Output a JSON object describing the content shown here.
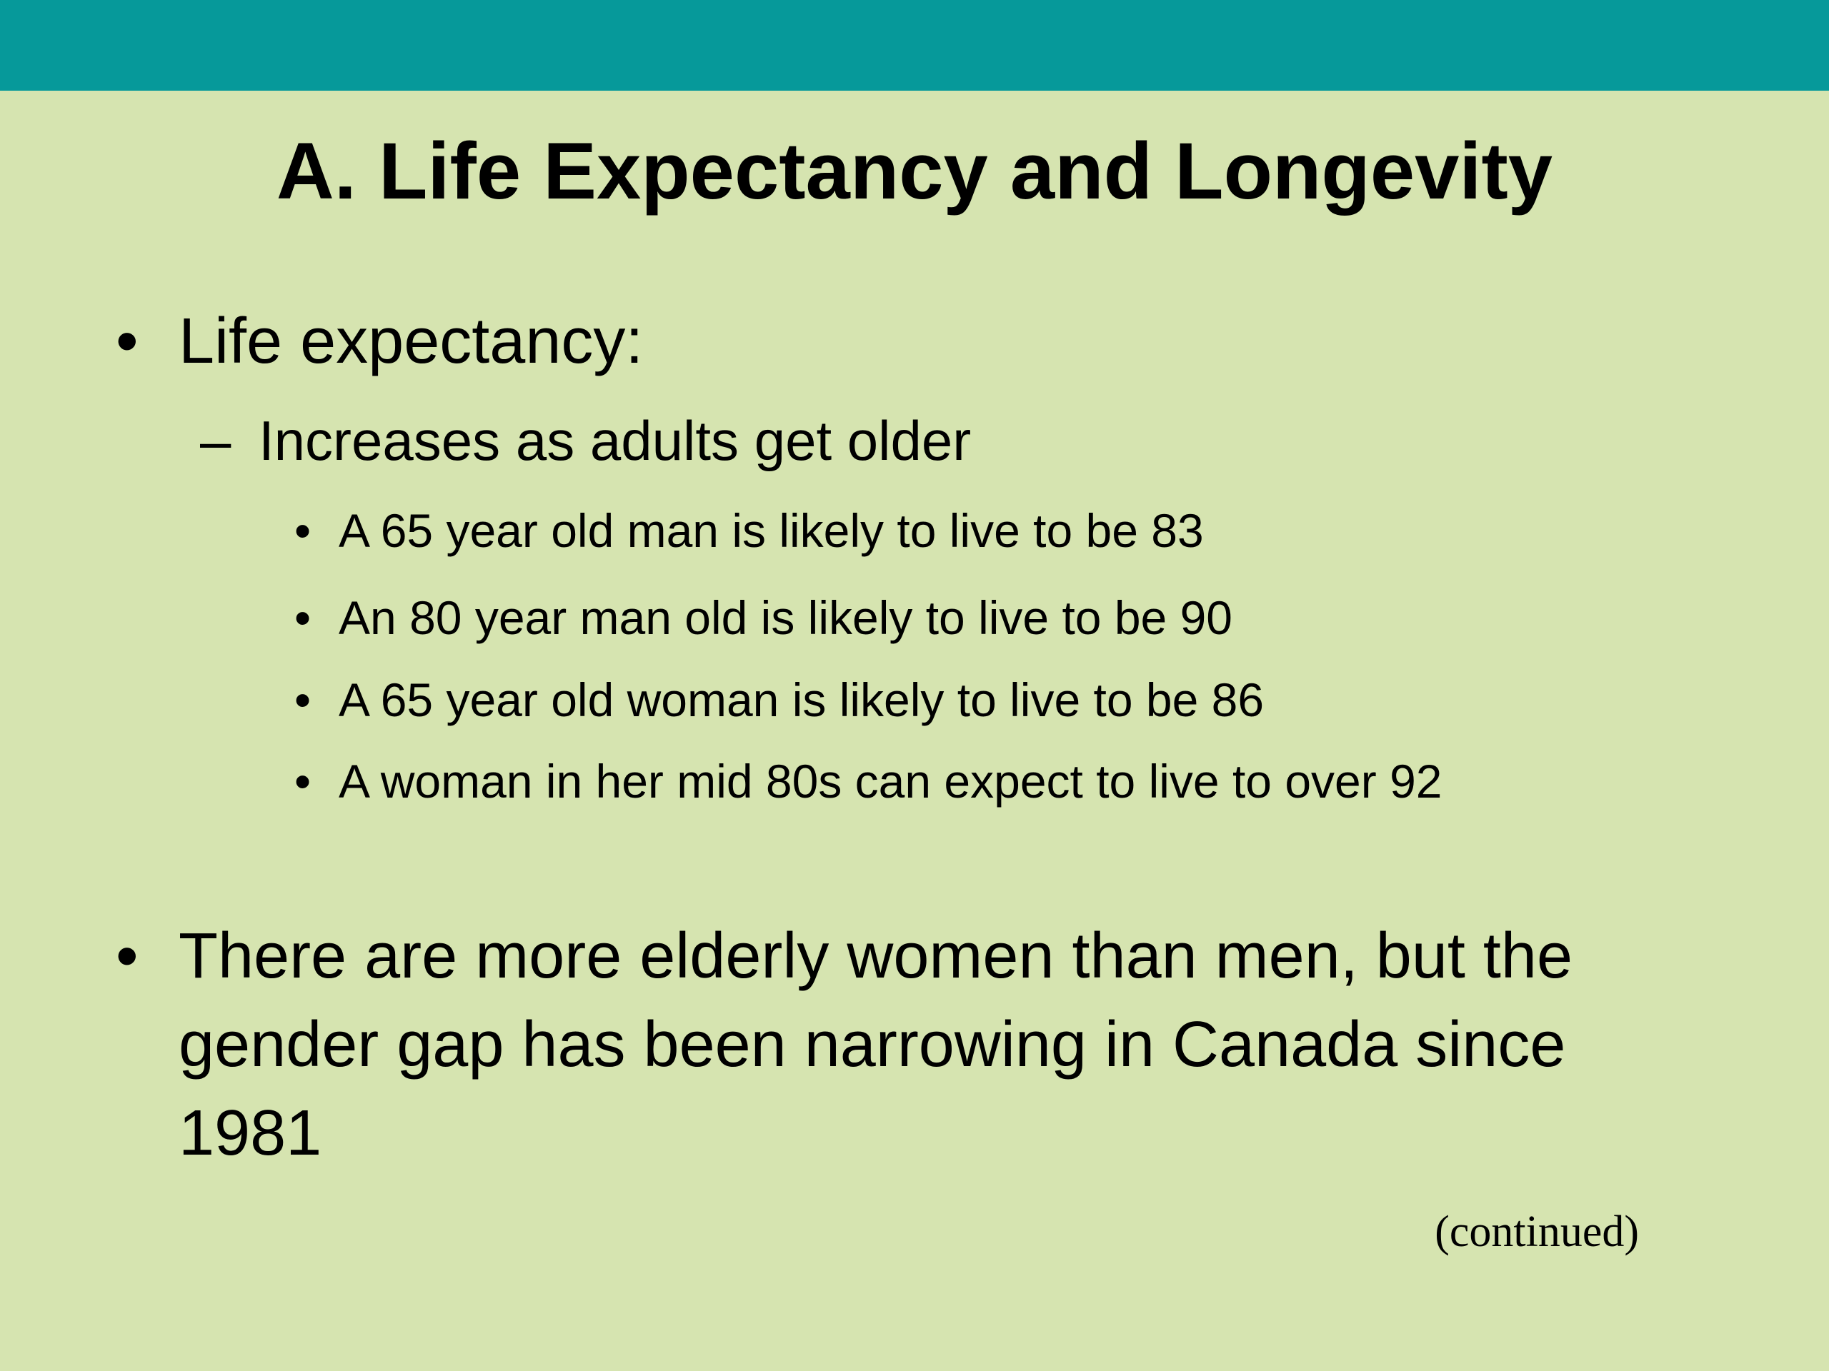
{
  "header": {
    "title": "A. Life Expectancy and Longevity"
  },
  "bullets": [
    {
      "text": "Life expectancy:",
      "sub": [
        {
          "text": "Increases as adults get older",
          "sub": [
            "A 65 year old man is likely to live to be 83",
            "An 80 year man old is likely to live to be 90",
            "A 65 year old woman is likely to live to be 86",
            "A woman in her mid 80s can expect to live to over 92"
          ]
        }
      ]
    },
    {
      "text": "There are more elderly women than men, but the gender gap has been narrowing in Canada since 1981"
    }
  ],
  "footer": {
    "note": "(continued)"
  }
}
